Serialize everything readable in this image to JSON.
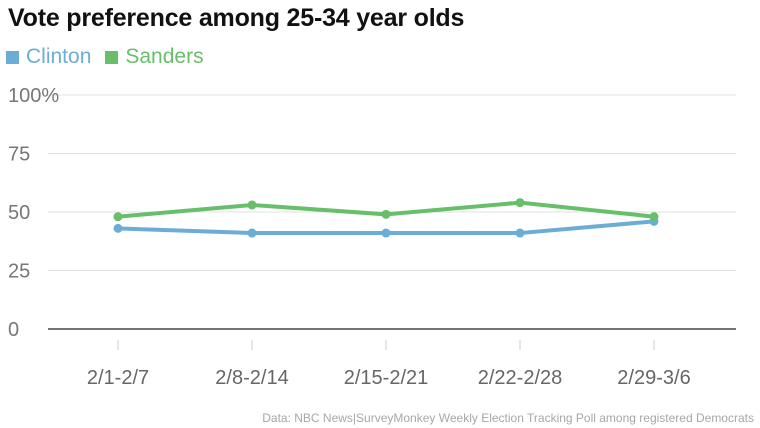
{
  "chart_data": {
    "type": "line",
    "title": "Vote preference among 25-34 year olds",
    "categories": [
      "2/1-2/7",
      "2/8-2/14",
      "2/15-2/21",
      "2/22-2/28",
      "2/29-3/6"
    ],
    "series": [
      {
        "name": "Clinton",
        "color": "#6aaed6",
        "values": [
          43,
          41,
          41,
          41,
          46
        ]
      },
      {
        "name": "Sanders",
        "color": "#68bf6a",
        "values": [
          48,
          53,
          49,
          54,
          48
        ]
      }
    ],
    "yticks": [
      {
        "value": 100,
        "label": "100%"
      },
      {
        "value": 75,
        "label": "75"
      },
      {
        "value": 50,
        "label": "50"
      },
      {
        "value": 25,
        "label": "25"
      },
      {
        "value": 0,
        "label": "0"
      }
    ],
    "ylim": [
      0,
      100
    ],
    "grid": true,
    "legend": "top-left",
    "source": "Data: NBC News|SurveyMonkey Weekly Election Tracking Poll among registered Democrats"
  }
}
